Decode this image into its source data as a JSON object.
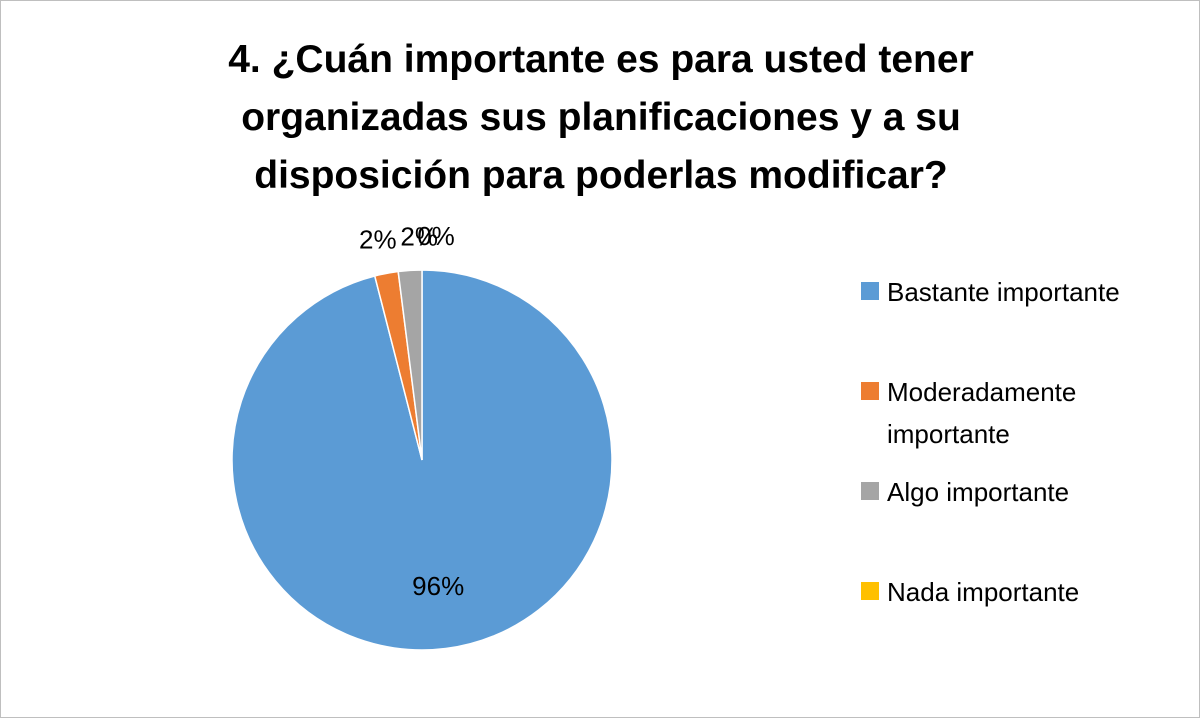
{
  "chart_data": {
    "type": "pie",
    "title": "4. ¿Cuán importante es para usted tener organizadas sus planificaciones y a su disposición para poderlas modificar?",
    "categories": [
      "Bastante importante",
      "Moderadamente importante",
      "Algo importante",
      "Nada importante"
    ],
    "values": [
      96,
      2,
      2,
      0
    ],
    "data_labels": [
      "96%",
      "2%",
      "2%",
      "0%"
    ],
    "colors": [
      "#5B9BD5",
      "#ED7D31",
      "#A5A5A5",
      "#FFC000"
    ],
    "legend_position": "right"
  }
}
